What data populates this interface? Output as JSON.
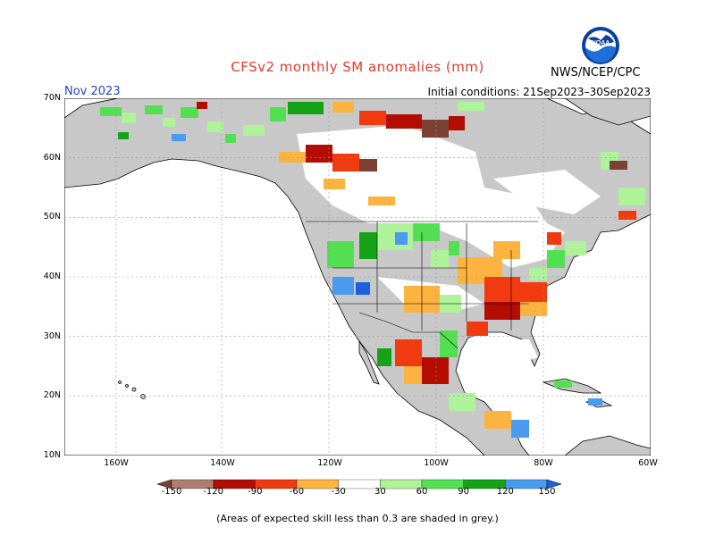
{
  "title": "CFSv2 monthly SM anomalies (mm)",
  "forecast_month": "Nov 2023",
  "initial_conditions": "Initial conditions: 21Sep2023–30Sep2023",
  "agency": "NWS/NCEP/CPC",
  "logo": {
    "text": "NOAA",
    "icon": "noaa-logo-icon"
  },
  "lat_labels": [
    "70N",
    "60N",
    "50N",
    "40N",
    "30N",
    "20N",
    "10N"
  ],
  "lon_labels": [
    "160W",
    "140W",
    "120W",
    "100W",
    "80W",
    "60W"
  ],
  "legend": {
    "labels": [
      "-150",
      "-120",
      "-90",
      "-60",
      "-30",
      "30",
      "60",
      "90",
      "120",
      "150"
    ],
    "colors": [
      "#7a4032",
      "#ad7f6f",
      "#b30c00",
      "#f03a10",
      "#fdb33f",
      "#ffffff",
      "#aef29a",
      "#52e052",
      "#16a216",
      "#4a9bf0",
      "#1c60e0"
    ]
  },
  "colors": {
    "land_grey": "#c8c8c8",
    "ocean": "#ffffff",
    "border": "#000000",
    "title": "#e23b2a",
    "month": "#2346c8"
  },
  "note": "(Areas of expected skill less than 0.3 are shaded in grey.)"
}
